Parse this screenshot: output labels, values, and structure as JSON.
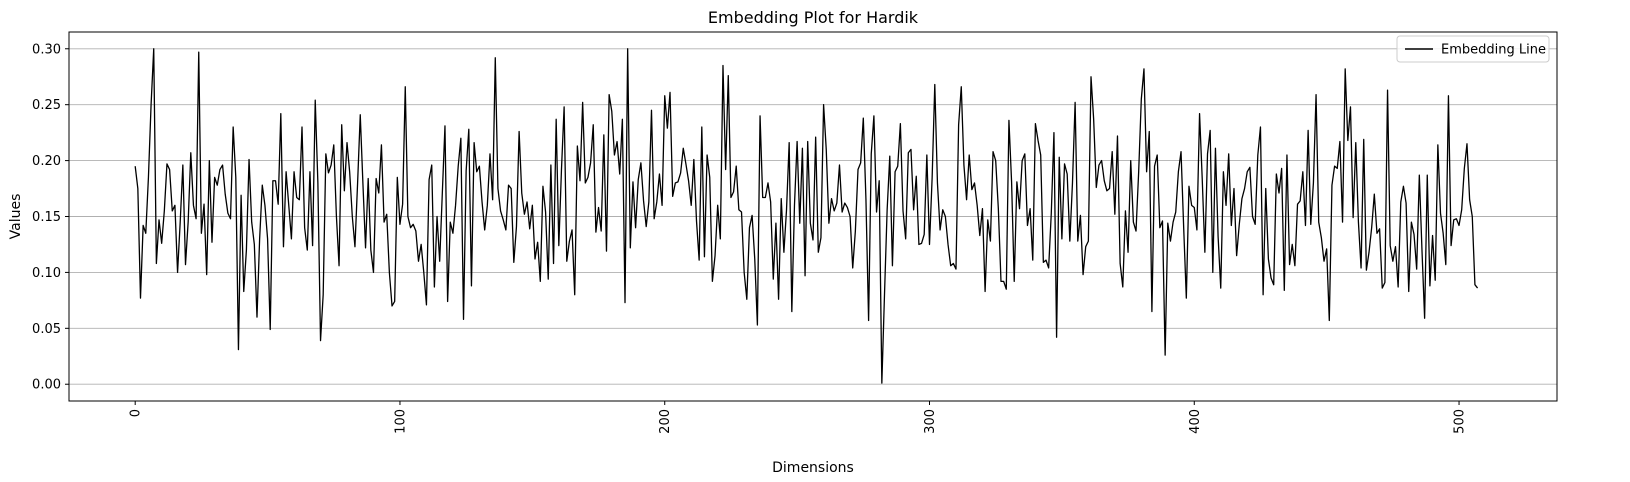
{
  "chart_data": {
    "type": "line",
    "title": "Embedding Plot for Hardik",
    "xlabel": "Dimensions",
    "ylabel": "Values",
    "xlim": [
      -25,
      537
    ],
    "ylim": [
      -0.015,
      0.315
    ],
    "xticks": [
      0,
      100,
      200,
      300,
      400,
      500
    ],
    "yticks": [
      0.0,
      0.05,
      0.1,
      0.15,
      0.2,
      0.25,
      0.3
    ],
    "ytick_labels": [
      "0.00",
      "0.05",
      "0.10",
      "0.15",
      "0.20",
      "0.25",
      "0.30"
    ],
    "xtick_rotation": -90,
    "grid": "horizontal",
    "legend_position": "top-right",
    "series": [
      {
        "name": "Embedding Line",
        "color": "#000000",
        "y": [
          0.195,
          0.175,
          0.077,
          0.142,
          0.135,
          0.185,
          0.25,
          0.3,
          0.108,
          0.147,
          0.126,
          0.155,
          0.197,
          0.192,
          0.155,
          0.16,
          0.1,
          0.145,
          0.196,
          0.107,
          0.145,
          0.207,
          0.16,
          0.148,
          0.297,
          0.135,
          0.161,
          0.098,
          0.2,
          0.127,
          0.185,
          0.178,
          0.192,
          0.196,
          0.17,
          0.153,
          0.148,
          0.23,
          0.185,
          0.031,
          0.169,
          0.083,
          0.12,
          0.201,
          0.145,
          0.125,
          0.06,
          0.13,
          0.178,
          0.16,
          0.13,
          0.049,
          0.182,
          0.182,
          0.161,
          0.242,
          0.123,
          0.19,
          0.16,
          0.13,
          0.19,
          0.167,
          0.165,
          0.23,
          0.14,
          0.12,
          0.19,
          0.124,
          0.254,
          0.18,
          0.039,
          0.08,
          0.206,
          0.189,
          0.196,
          0.214,
          0.15,
          0.106,
          0.232,
          0.173,
          0.216,
          0.19,
          0.15,
          0.123,
          0.18,
          0.241,
          0.18,
          0.122,
          0.184,
          0.12,
          0.1,
          0.184,
          0.171,
          0.214,
          0.145,
          0.152,
          0.1,
          0.07,
          0.074,
          0.185,
          0.143,
          0.161,
          0.266,
          0.15,
          0.14,
          0.143,
          0.137,
          0.11,
          0.125,
          0.1,
          0.071,
          0.183,
          0.196,
          0.087,
          0.15,
          0.11,
          0.171,
          0.231,
          0.074,
          0.145,
          0.135,
          0.16,
          0.195,
          0.22,
          0.058,
          0.191,
          0.228,
          0.088,
          0.216,
          0.19,
          0.195,
          0.163,
          0.138,
          0.16,
          0.206,
          0.165,
          0.292,
          0.175,
          0.155,
          0.147,
          0.138,
          0.178,
          0.175,
          0.109,
          0.141,
          0.226,
          0.171,
          0.152,
          0.163,
          0.139,
          0.16,
          0.112,
          0.127,
          0.092,
          0.177,
          0.154,
          0.094,
          0.196,
          0.108,
          0.237,
          0.124,
          0.192,
          0.248,
          0.11,
          0.128,
          0.138,
          0.08,
          0.213,
          0.182,
          0.252,
          0.18,
          0.185,
          0.198,
          0.232,
          0.136,
          0.158,
          0.137,
          0.223,
          0.119,
          0.259,
          0.244,
          0.205,
          0.217,
          0.188,
          0.237,
          0.073,
          0.3,
          0.122,
          0.181,
          0.14,
          0.183,
          0.198,
          0.164,
          0.141,
          0.163,
          0.245,
          0.148,
          0.163,
          0.188,
          0.16,
          0.258,
          0.229,
          0.261,
          0.168,
          0.18,
          0.181,
          0.189,
          0.211,
          0.197,
          0.182,
          0.16,
          0.201,
          0.146,
          0.111,
          0.23,
          0.114,
          0.205,
          0.185,
          0.092,
          0.115,
          0.16,
          0.13,
          0.285,
          0.192,
          0.276,
          0.167,
          0.172,
          0.195,
          0.156,
          0.154,
          0.1,
          0.076,
          0.14,
          0.151,
          0.112,
          0.053,
          0.24,
          0.167,
          0.167,
          0.18,
          0.163,
          0.094,
          0.144,
          0.076,
          0.166,
          0.118,
          0.156,
          0.216,
          0.065,
          0.16,
          0.217,
          0.144,
          0.211,
          0.097,
          0.217,
          0.144,
          0.129,
          0.221,
          0.118,
          0.131,
          0.25,
          0.21,
          0.144,
          0.166,
          0.155,
          0.162,
          0.196,
          0.154,
          0.162,
          0.158,
          0.15,
          0.104,
          0.137,
          0.192,
          0.198,
          0.238,
          0.165,
          0.057,
          0.206,
          0.24,
          0.154,
          0.182,
          0.001,
          0.08,
          0.156,
          0.204,
          0.106,
          0.19,
          0.195,
          0.233,
          0.155,
          0.13,
          0.207,
          0.21,
          0.156,
          0.186,
          0.125,
          0.126,
          0.134,
          0.205,
          0.125,
          0.185,
          0.268,
          0.18,
          0.138,
          0.156,
          0.15,
          0.125,
          0.106,
          0.108,
          0.103,
          0.232,
          0.266,
          0.196,
          0.165,
          0.205,
          0.174,
          0.18,
          0.16,
          0.133,
          0.157,
          0.083,
          0.147,
          0.128,
          0.208,
          0.2,
          0.157,
          0.092,
          0.092,
          0.085,
          0.236,
          0.181,
          0.092,
          0.181,
          0.157,
          0.2,
          0.206,
          0.142,
          0.157,
          0.111,
          0.233,
          0.218,
          0.205,
          0.109,
          0.111,
          0.104,
          0.153,
          0.225,
          0.042,
          0.203,
          0.13,
          0.197,
          0.188,
          0.128,
          0.18,
          0.252,
          0.128,
          0.151,
          0.098,
          0.123,
          0.128,
          0.275,
          0.237,
          0.176,
          0.196,
          0.2,
          0.182,
          0.173,
          0.175,
          0.208,
          0.152,
          0.222,
          0.108,
          0.087,
          0.155,
          0.118,
          0.2,
          0.145,
          0.137,
          0.19,
          0.255,
          0.282,
          0.19,
          0.226,
          0.065,
          0.195,
          0.205,
          0.14,
          0.146,
          0.026,
          0.144,
          0.128,
          0.145,
          0.154,
          0.19,
          0.208,
          0.14,
          0.077,
          0.177,
          0.16,
          0.158,
          0.138,
          0.242,
          0.184,
          0.118,
          0.206,
          0.227,
          0.1,
          0.211,
          0.132,
          0.086,
          0.19,
          0.16,
          0.206,
          0.142,
          0.175,
          0.115,
          0.143,
          0.166,
          0.175,
          0.19,
          0.194,
          0.15,
          0.143,
          0.205,
          0.23,
          0.08,
          0.175,
          0.112,
          0.095,
          0.089,
          0.188,
          0.171,
          0.193,
          0.084,
          0.205,
          0.107,
          0.125,
          0.106,
          0.161,
          0.164,
          0.19,
          0.142,
          0.227,
          0.143,
          0.18,
          0.259,
          0.145,
          0.131,
          0.11,
          0.121,
          0.057,
          0.178,
          0.195,
          0.193,
          0.217,
          0.145,
          0.282,
          0.218,
          0.248,
          0.149,
          0.216,
          0.145,
          0.104,
          0.219,
          0.102,
          0.118,
          0.14,
          0.17,
          0.135,
          0.139,
          0.086,
          0.091,
          0.263,
          0.124,
          0.11,
          0.123,
          0.087,
          0.163,
          0.177,
          0.162,
          0.083,
          0.145,
          0.134,
          0.103,
          0.187,
          0.12,
          0.059,
          0.187,
          0.088,
          0.133,
          0.093,
          0.214,
          0.153,
          0.135,
          0.107,
          0.258,
          0.124,
          0.147,
          0.148,
          0.142,
          0.156,
          0.193,
          0.215,
          0.165,
          0.15,
          0.089,
          0.086
        ]
      }
    ]
  }
}
